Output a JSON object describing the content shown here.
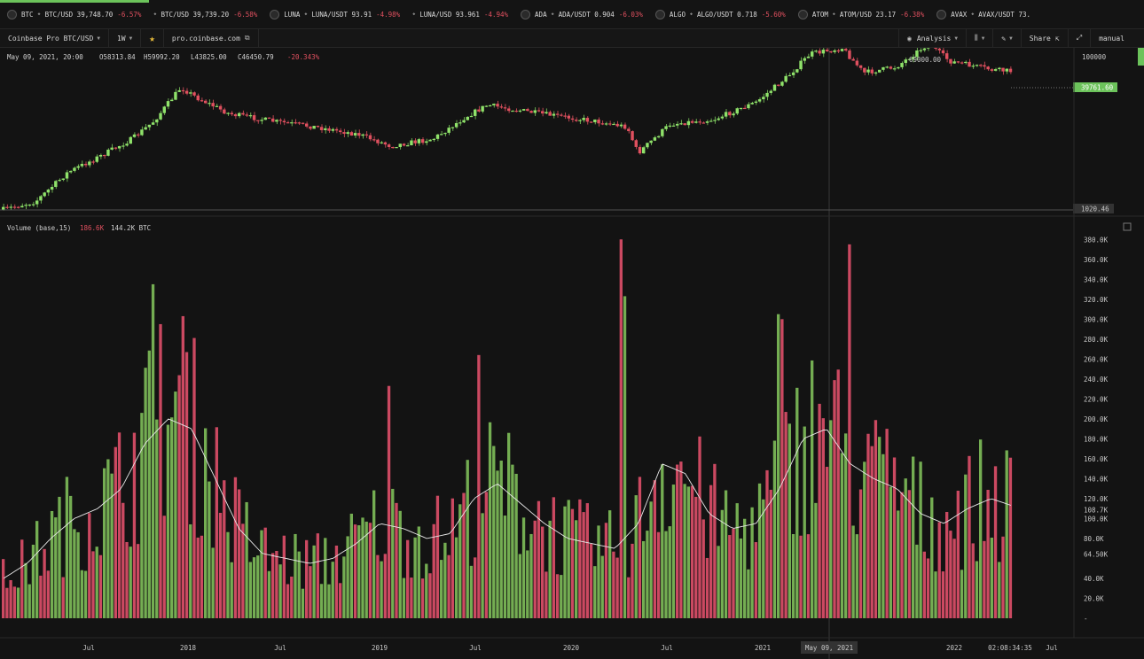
{
  "ticker": {
    "items": [
      {
        "symbol": "BTC",
        "pair": "BTC/USD",
        "price": "39,748.70",
        "change": "-6.57%"
      },
      {
        "symbol": "",
        "pair": "BTC/USD",
        "price": "39,739.20",
        "change": "-6.58%"
      },
      {
        "symbol": "LUNA",
        "pair": "LUNA/USDT",
        "price": "93.91",
        "change": "-4.98%"
      },
      {
        "symbol": "",
        "pair": "LUNA/USD",
        "price": "93.961",
        "change": "-4.94%"
      },
      {
        "symbol": "ADA",
        "pair": "ADA/USDT",
        "price": "0.904",
        "change": "-6.03%"
      },
      {
        "symbol": "ALGO",
        "pair": "ALGO/USDT",
        "price": "0.718",
        "change": "-5.60%"
      },
      {
        "symbol": "ATOM",
        "pair": "ATOM/USD",
        "price": "23.17",
        "change": "-6.38%"
      },
      {
        "symbol": "AVAX",
        "pair": "AVAX/USDT",
        "price": "73.",
        "change": ""
      }
    ],
    "progress": 0.13
  },
  "toolbar": {
    "market": "Coinbase Pro BTC/USD",
    "interval": "1W",
    "url": "pro.coinbase.com",
    "analysis": "Analysis",
    "share": "Share",
    "mode": "manual"
  },
  "price_header": {
    "date": "May 09, 2021, 20:00",
    "open": "O58313.84",
    "high": "H59992.20",
    "low": "L43825.00",
    "close": "C46450.79",
    "change": "-20.343%"
  },
  "volume_header": {
    "label": "Volume (base,15)",
    "v1": "186.6K",
    "v2": "144.2K BTC"
  },
  "chart_data": [
    {
      "type": "candlestick",
      "title": "",
      "y_scale": "log",
      "y_ticks": [
        "100000"
      ],
      "last_price_label": "39761.60",
      "high_label": "69000.00",
      "low_label": "1020.46",
      "x_ticks": [
        "Jul",
        "2018",
        "Jul",
        "2019",
        "Jul",
        "2020",
        "Jul",
        "2021",
        "May 09, 2021",
        "2022",
        "02:08:34:35",
        "Jul"
      ],
      "path_points": [
        [
          0,
          0.985
        ],
        [
          0.03,
          0.93
        ],
        [
          0.06,
          0.73
        ],
        [
          0.09,
          0.62
        ],
        [
          0.12,
          0.5
        ],
        [
          0.14,
          0.38
        ],
        [
          0.165,
          0.15
        ],
        [
          0.18,
          0.22
        ],
        [
          0.21,
          0.33
        ],
        [
          0.25,
          0.38
        ],
        [
          0.29,
          0.42
        ],
        [
          0.33,
          0.47
        ],
        [
          0.36,
          0.55
        ],
        [
          0.4,
          0.5
        ],
        [
          0.43,
          0.35
        ],
        [
          0.45,
          0.27
        ],
        [
          0.5,
          0.33
        ],
        [
          0.55,
          0.38
        ],
        [
          0.58,
          0.42
        ],
        [
          0.59,
          0.6
        ],
        [
          0.62,
          0.4
        ],
        [
          0.66,
          0.37
        ],
        [
          0.7,
          0.25
        ],
        [
          0.73,
          0.07
        ],
        [
          0.75,
          -0.08
        ],
        [
          0.78,
          -0.12
        ],
        [
          0.8,
          0.05
        ],
        [
          0.83,
          0.01
        ],
        [
          0.86,
          -0.15
        ],
        [
          0.88,
          -0.03
        ],
        [
          0.92,
          0.03
        ],
        [
          0.94,
          0.04
        ]
      ]
    },
    {
      "type": "bar",
      "title": "Volume",
      "unit": "BTC",
      "y_ticks": [
        "380.0K",
        "360.0K",
        "340.0K",
        "320.0K",
        "300.0K",
        "280.0K",
        "260.0K",
        "240.0K",
        "220.0K",
        "200.0K",
        "180.0K",
        "160.0K",
        "140.0K",
        "120.0K",
        "108.7K",
        "100.0K",
        "80.0K",
        "64.50K",
        "40.0K",
        "20.0K",
        "-"
      ],
      "ylim": [
        0,
        390000
      ],
      "moving_average_length": 15,
      "weeks_shown": 270,
      "spikes": [
        {
          "week": 40,
          "value": 335000,
          "dir": "up"
        },
        {
          "week": 42,
          "value": 295000,
          "dir": "down"
        },
        {
          "week": 48,
          "value": 303000,
          "dir": "down"
        },
        {
          "week": 103,
          "value": 233000,
          "dir": "down"
        },
        {
          "week": 127,
          "value": 264000,
          "dir": "down"
        },
        {
          "week": 165,
          "value": 380000,
          "dir": "down"
        },
        {
          "week": 166,
          "value": 323000,
          "dir": "up"
        },
        {
          "week": 207,
          "value": 305000,
          "dir": "up"
        },
        {
          "week": 208,
          "value": 300000,
          "dir": "down"
        },
        {
          "week": 226,
          "value": 375000,
          "dir": "down"
        },
        {
          "week": 231,
          "value": 185000,
          "dir": "down"
        }
      ],
      "ma_series": [
        40000,
        55000,
        80000,
        100000,
        110000,
        130000,
        175000,
        200000,
        190000,
        140000,
        90000,
        65000,
        60000,
        55000,
        60000,
        75000,
        95000,
        90000,
        80000,
        85000,
        120000,
        135000,
        115000,
        95000,
        80000,
        75000,
        70000,
        95000,
        155000,
        145000,
        105000,
        90000,
        95000,
        130000,
        180000,
        190000,
        155000,
        140000,
        130000,
        105000,
        95000,
        110000,
        120000,
        112000
      ]
    }
  ]
}
